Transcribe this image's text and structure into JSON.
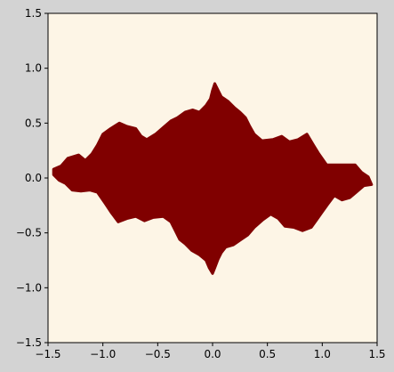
{
  "chart_data": {
    "type": "heatmap",
    "title": "",
    "xlabel": "",
    "ylabel": "",
    "xlim": [
      -1.5,
      1.5
    ],
    "ylim": [
      -1.5,
      1.5
    ],
    "xticks": [
      -1.5,
      -1.0,
      -0.5,
      0.0,
      0.5,
      1.0,
      1.5
    ],
    "yticks": [
      -1.5,
      -1.0,
      -0.5,
      0.0,
      0.5,
      1.0,
      1.5
    ],
    "xtick_labels": [
      "−1.5",
      "−1.0",
      "−0.5",
      "0.0",
      "0.5",
      "1.0",
      "1.5"
    ],
    "ytick_labels": [
      "−1.5",
      "−1.0",
      "−0.5",
      "0.0",
      "0.5",
      "1.0",
      "1.5"
    ],
    "grid": false,
    "colors": {
      "background": "#fdf5e6",
      "set_fill": "#800000",
      "figure_bg": "#d3d3d3"
    },
    "region_extent": {
      "x": [
        -1.45,
        1.45
      ],
      "y": [
        -0.85,
        0.88
      ]
    }
  }
}
